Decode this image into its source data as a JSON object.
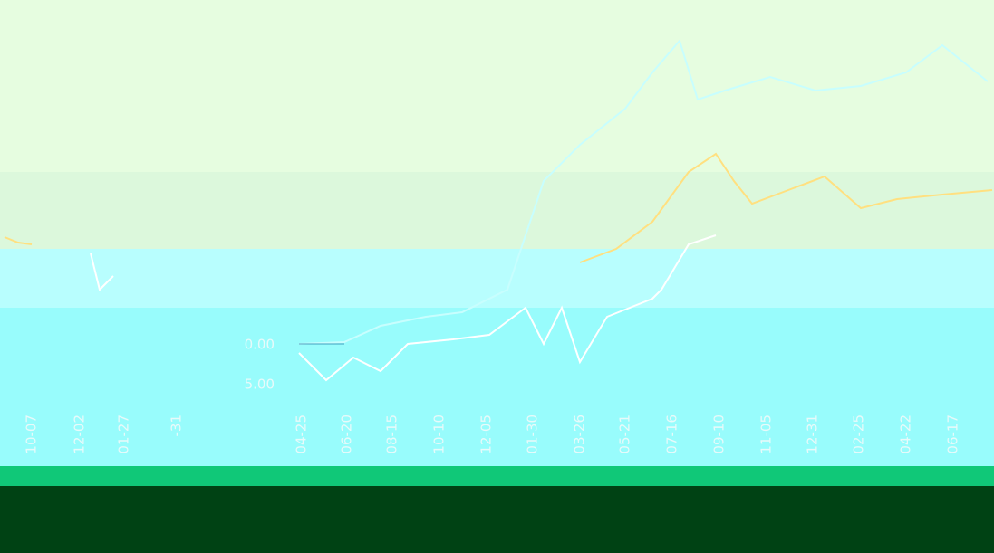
{
  "chart": {
    "y_axis_labels": [
      "0.00",
      "5.00"
    ],
    "x_axis_labels": [
      "10-07",
      "12-02",
      "01-27",
      "-31",
      "04-25",
      "06-20",
      "08-15",
      "10-10",
      "12-05",
      "01-30",
      "03-26",
      "05-21",
      "07-16",
      "09-10",
      "11-05",
      "12-31",
      "02-25",
      "04-22",
      "06-17"
    ]
  }
}
